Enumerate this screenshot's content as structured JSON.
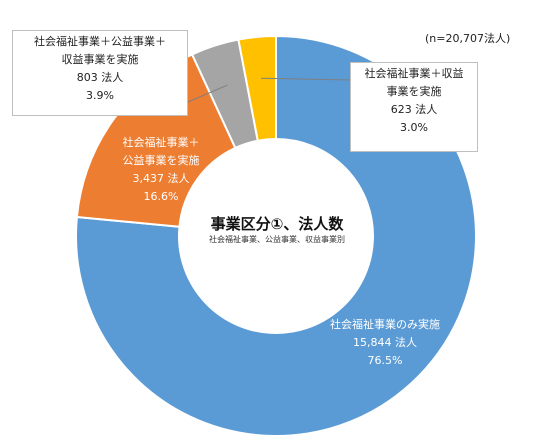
{
  "note": "(n=20,707法人)",
  "center": {
    "title": "事業区分①、法人数",
    "subtitle": "社会福祉事業、公益事業、収益事業別"
  },
  "chart_data": {
    "type": "pie",
    "donut": true,
    "unit": "法人",
    "total": 20707,
    "slices": [
      {
        "label_lines": [
          "社会福祉事業のみ実施"
        ],
        "count": "15,844 法人",
        "percent": "76.5%",
        "value": 15844,
        "color": "#5b9bd5"
      },
      {
        "label_lines": [
          "社会福祉事業＋",
          "公益事業を実施"
        ],
        "count": "3,437 法人",
        "percent": "16.6%",
        "value": 3437,
        "color": "#ed7d31"
      },
      {
        "label_lines": [
          "社会福祉事業＋公益事業＋",
          "収益事業を実施"
        ],
        "count": "803 法人",
        "percent": "3.9%",
        "value": 803,
        "color": "#a5a5a5"
      },
      {
        "label_lines": [
          "社会福祉事業＋収益",
          "事業を実施"
        ],
        "count": "623 法人",
        "percent": "3.0%",
        "value": 623,
        "color": "#ffc000"
      }
    ]
  }
}
